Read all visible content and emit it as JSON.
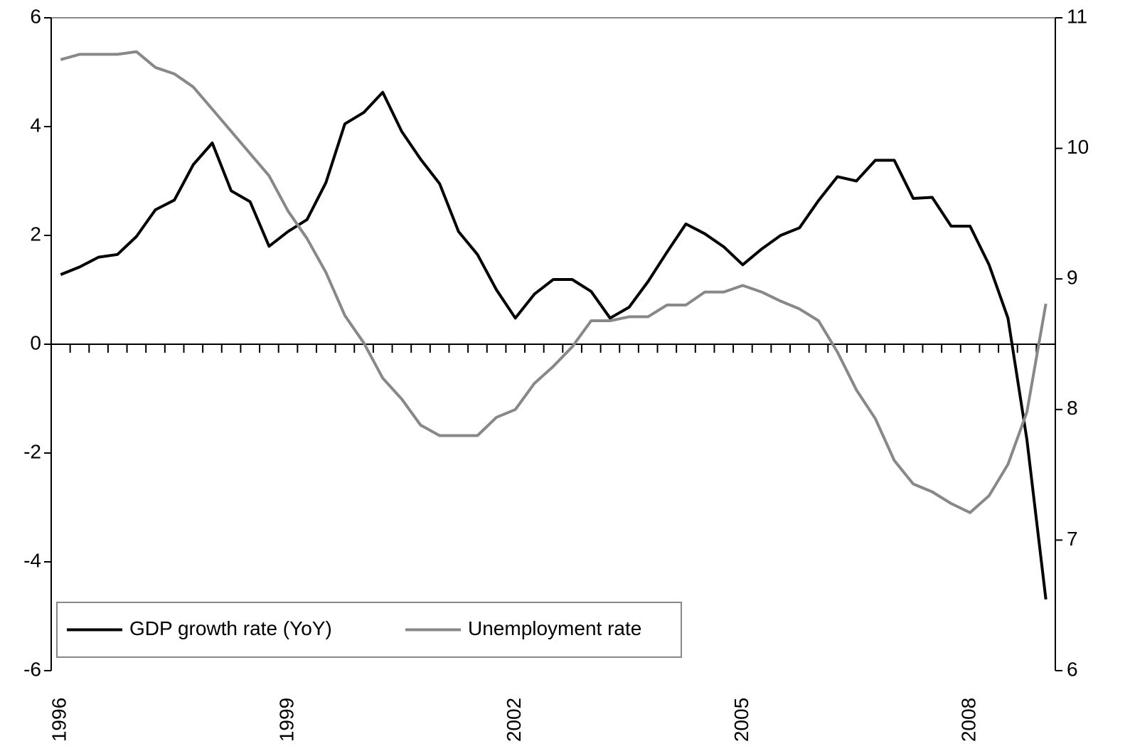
{
  "chart_data": {
    "type": "line",
    "categories": [
      "1996",
      null,
      null,
      null,
      null,
      null,
      null,
      null,
      null,
      null,
      null,
      null,
      "1999",
      null,
      null,
      null,
      null,
      null,
      null,
      null,
      null,
      null,
      null,
      null,
      "2002",
      null,
      null,
      null,
      null,
      null,
      null,
      null,
      null,
      null,
      null,
      null,
      "2005",
      null,
      null,
      null,
      null,
      null,
      null,
      null,
      null,
      null,
      null,
      null,
      "2008",
      null,
      null,
      null,
      null
    ],
    "series": [
      {
        "name": "GDP growth rate (YoY)",
        "color": "#000000",
        "axis": "y",
        "values": [
          1.28,
          1.42,
          1.6,
          1.65,
          1.98,
          2.47,
          2.65,
          3.3,
          3.7,
          2.82,
          2.62,
          1.8,
          2.07,
          2.29,
          2.97,
          4.05,
          4.26,
          4.63,
          3.91,
          3.4,
          2.95,
          2.07,
          1.65,
          1.0,
          0.48,
          0.92,
          1.19,
          1.19,
          0.97,
          0.48,
          0.68,
          1.15,
          1.69,
          2.21,
          2.03,
          1.79,
          1.46,
          1.75,
          2.0,
          2.14,
          2.64,
          3.08,
          3.0,
          3.38,
          3.38,
          2.68,
          2.7,
          2.17,
          2.17,
          1.46,
          0.48,
          -1.75,
          -4.69
        ]
      },
      {
        "name": "Unemployment rate",
        "color": "#888888",
        "axis": "y2",
        "values": [
          10.68,
          10.72,
          10.72,
          10.72,
          10.74,
          10.62,
          10.57,
          10.47,
          10.3,
          10.13,
          9.96,
          9.79,
          9.52,
          9.31,
          9.05,
          8.72,
          8.51,
          8.24,
          8.08,
          7.88,
          7.8,
          7.8,
          7.8,
          7.94,
          8.0,
          8.2,
          8.33,
          8.48,
          8.68,
          8.68,
          8.71,
          8.71,
          8.8,
          8.8,
          8.9,
          8.9,
          8.95,
          8.9,
          8.83,
          8.77,
          8.68,
          8.44,
          8.15,
          7.93,
          7.61,
          7.43,
          7.37,
          7.28,
          7.21,
          7.34,
          7.58,
          7.98,
          8.81
        ]
      }
    ],
    "ylim": [
      -6,
      6
    ],
    "yticks": [
      -6,
      -4,
      -2,
      0,
      2,
      4,
      6
    ],
    "y2lim": [
      6,
      11
    ],
    "y2ticks": [
      6,
      7,
      8,
      9,
      10,
      11
    ],
    "grid": false,
    "legend": "lower left"
  }
}
